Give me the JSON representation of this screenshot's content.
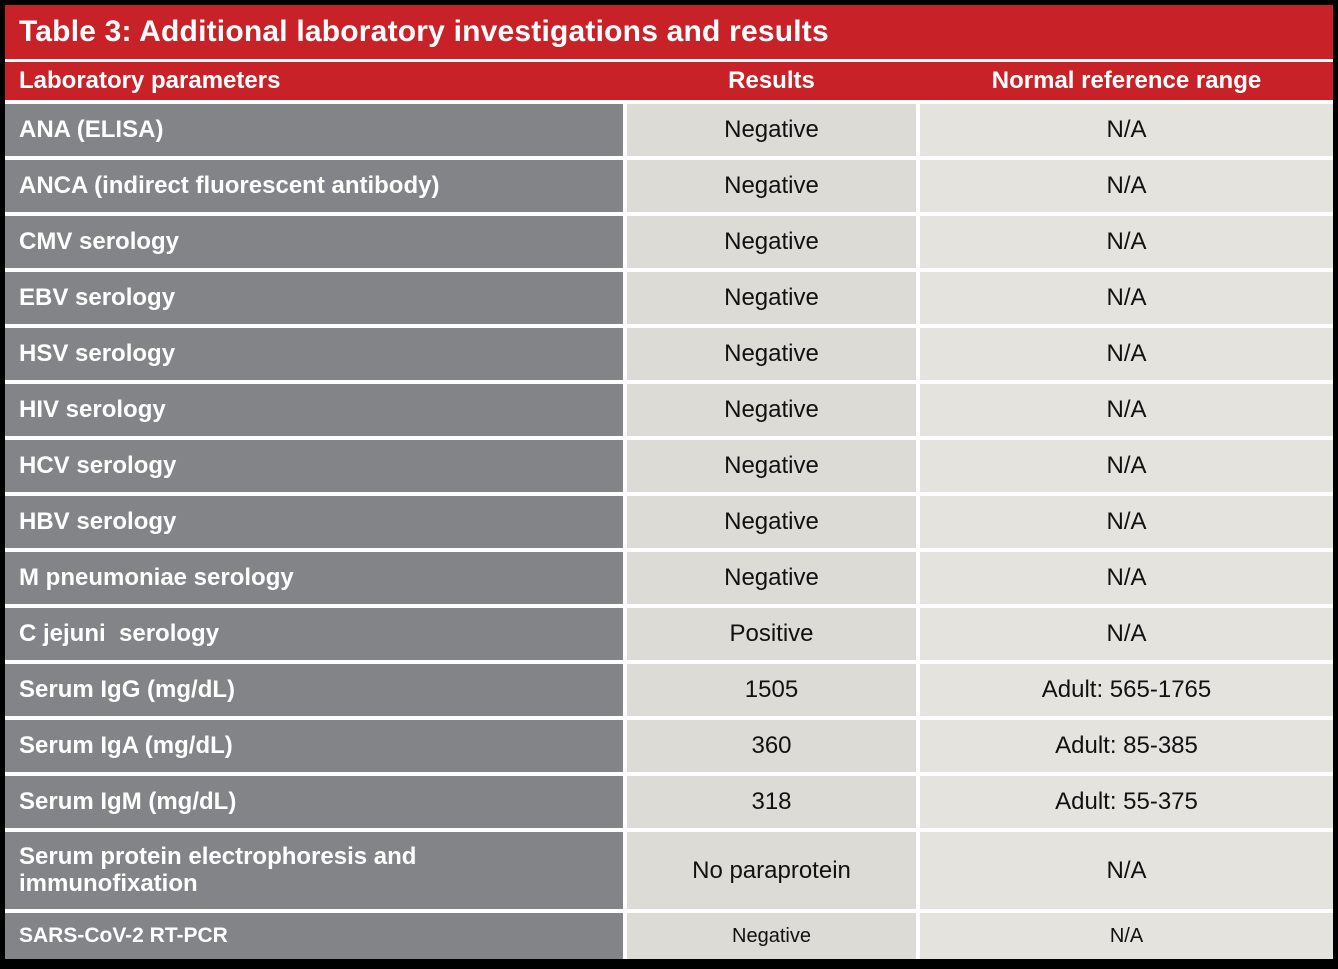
{
  "table": {
    "title": "Table 3: Additional laboratory investigations and results",
    "header": {
      "parameter": "Laboratory parameters",
      "results": "Results",
      "range": "Normal reference range"
    },
    "colors": {
      "red": "#c82128",
      "gray": "#828487",
      "results_cell_bg": "#dddbd5",
      "range_cell_bg": "#e5e3de",
      "separator_white": "#ffffff",
      "frame_black": "#000000"
    },
    "rows": [
      {
        "parameter": "ANA (ELISA)",
        "result": "Negative",
        "range": "N/A"
      },
      {
        "parameter": "ANCA (indirect fluorescent antibody)",
        "result": "Negative",
        "range": "N/A"
      },
      {
        "parameter": "CMV serology",
        "result": "Negative",
        "range": "N/A"
      },
      {
        "parameter": "EBV serology",
        "result": "Negative",
        "range": "N/A"
      },
      {
        "parameter": "HSV serology",
        "result": "Negative",
        "range": "N/A"
      },
      {
        "parameter": "HIV serology",
        "result": "Negative",
        "range": "N/A"
      },
      {
        "parameter": "HCV serology",
        "result": "Negative",
        "range": "N/A"
      },
      {
        "parameter": "HBV serology",
        "result": "Negative",
        "range": "N/A"
      },
      {
        "parameter": "M pneumoniae serology",
        "result": "Negative",
        "range": "N/A"
      },
      {
        "parameter": "C jejuni  serology",
        "result": "Positive",
        "range": "N/A"
      },
      {
        "parameter": "Serum IgG (mg/dL)",
        "result": "1505",
        "range": "Adult: 565-1765"
      },
      {
        "parameter": "Serum IgA (mg/dL)",
        "result": "360",
        "range": "Adult: 85-385"
      },
      {
        "parameter": "Serum IgM (mg/dL)",
        "result": "318",
        "range": "Adult: 55-375"
      },
      {
        "parameter": "Serum protein electrophoresis and immunofixation",
        "result": "No paraprotein",
        "range": "N/A",
        "two_line": true
      },
      {
        "parameter": "SARS-CoV-2 RT-PCR",
        "result": "Negative",
        "range": "N/A",
        "compact": true
      }
    ]
  }
}
